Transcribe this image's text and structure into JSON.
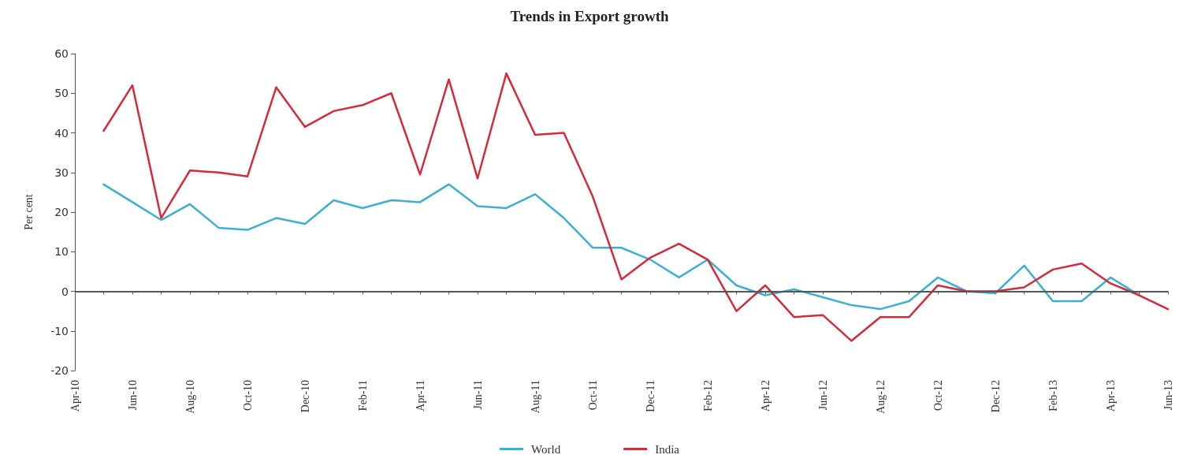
{
  "chart_data": {
    "type": "line",
    "title": "Trends in Export growth",
    "ylabel": "Per cent",
    "categories": [
      "Apr-10",
      null,
      "Jun-10",
      null,
      "Aug-10",
      null,
      "Oct-10",
      null,
      "Dec-10",
      null,
      "Feb-11",
      null,
      "Apr-11",
      null,
      "Jun-11",
      null,
      "Aug-11",
      null,
      "Oct-11",
      null,
      "Dec-11",
      null,
      "Feb-12",
      null,
      "Apr-12",
      null,
      "Jun-12",
      null,
      "Aug-12",
      null,
      "Oct-12",
      null,
      "Dec-12",
      null,
      "Feb-13",
      null,
      "Apr-13",
      null,
      "Jun-13"
    ],
    "series": [
      {
        "name": "World",
        "color": "#3bb0d4",
        "values": [
          null,
          27,
          22.5,
          18,
          22,
          16,
          15.5,
          18.5,
          17,
          23,
          21,
          23,
          22.5,
          27,
          21.5,
          21,
          24.5,
          18.5,
          11,
          11,
          8,
          3.5,
          8,
          1.5,
          -1,
          0.5,
          -1.5,
          -3.5,
          -4.5,
          -2.5,
          3.5,
          0,
          -0.5,
          6.5,
          -2.5,
          -2.5,
          3.5,
          -1,
          null
        ]
      },
      {
        "name": "India",
        "color": "#d42a3a",
        "values": [
          null,
          40.5,
          52,
          18.5,
          30.5,
          30,
          29,
          51.5,
          41.5,
          45.5,
          47,
          50,
          29.5,
          53.5,
          28.5,
          55,
          39.5,
          40,
          24,
          3,
          8.5,
          12,
          8,
          -5,
          1.5,
          -6.5,
          -6,
          -12.5,
          -6.5,
          -6.5,
          1.5,
          0,
          0,
          1,
          5.5,
          7,
          2,
          -1,
          -4.5
        ]
      }
    ],
    "ylim": [
      -20,
      60
    ],
    "yticks": [
      -20,
      -10,
      0,
      10,
      20,
      30,
      40,
      50,
      60
    ],
    "ref_lines": [
      {
        "axis": "y",
        "value": 0,
        "color": "#555555"
      }
    ],
    "grid": false,
    "legend": "bottom",
    "marker": "none",
    "line_style": "solid"
  }
}
